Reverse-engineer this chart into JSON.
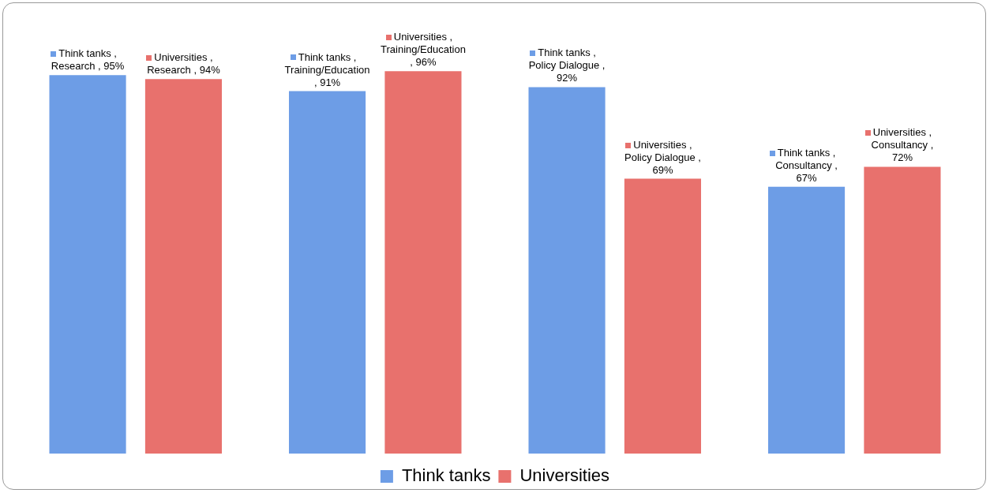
{
  "chart_data": {
    "type": "bar",
    "categories": [
      null,
      null,
      null,
      null
    ],
    "series": [
      {
        "name": "Think tanks",
        "color": "#6d9de6",
        "values": [
          95,
          91,
          92,
          67
        ],
        "value_labels": [
          "Think tanks , Research , 95%",
          "Think tanks , Training/Education , 91%",
          "Think tanks , Policy Dialogue , 92%",
          "Think tanks , Consultancy , 67%"
        ]
      },
      {
        "name": "Universities",
        "color": "#e8716d",
        "values": [
          94,
          96,
          69,
          72
        ],
        "value_labels": [
          "Universities , Research , 94%",
          "Universities , Training/Education , 96%",
          "Universities , Policy Dialogue , 69%",
          "Universities , Consultancy , 72%"
        ]
      }
    ],
    "legend": "bottom",
    "tick_labels": false,
    "grid": false
  }
}
